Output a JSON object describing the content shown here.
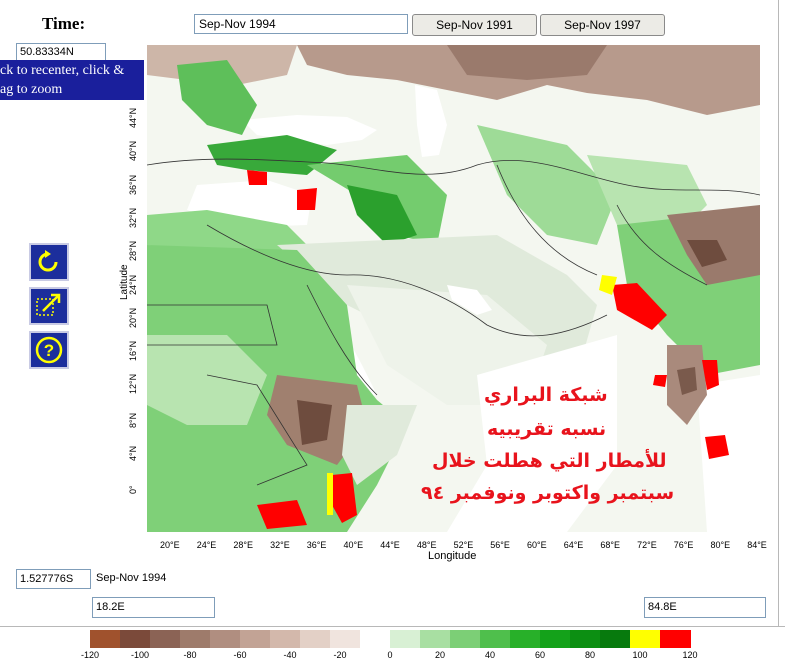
{
  "time": {
    "label": "Time:",
    "value": "Sep-Nov 1994",
    "prev_button": "Sep-Nov 1991",
    "next_button": "Sep-Nov 1997"
  },
  "coords": {
    "top_lat": "50.83334N",
    "bottom_lat": "1.527776S",
    "bottom_time": "Sep-Nov 1994",
    "left_lon": "18.2E",
    "right_lon": "84.8E"
  },
  "tooltip": {
    "line1": "ck to recenter, click &",
    "line2": "ag to zoom"
  },
  "tools": [
    "refresh-icon",
    "zoom-out-icon",
    "help-icon"
  ],
  "map": {
    "ylabel": "Latitude",
    "xlabel": "Longitude",
    "lat_ticks": [
      "44°N",
      "40°N",
      "36°N",
      "32°N",
      "28°N",
      "24°N",
      "20°N",
      "16°N",
      "12°N",
      "8°N",
      "4°N",
      "0°"
    ],
    "lon_ticks": [
      "20°E",
      "24°E",
      "28°E",
      "32°E",
      "36°E",
      "40°E",
      "44°E",
      "48°E",
      "52°E",
      "56°E",
      "60°E",
      "64°E",
      "68°E",
      "72°E",
      "76°E",
      "80°E",
      "84°E"
    ]
  },
  "annotation": {
    "line1": "شبكة البراري",
    "line2": "نسبه تقريبيه",
    "line3": "للأمطار التي هطلت خلال",
    "line4": "سبتمبر واكتوبر ونوفمبر ٩٤"
  },
  "colorbar": {
    "labels": [
      "-120",
      "-100",
      "-80",
      "-60",
      "-40",
      "-20",
      "0",
      "20",
      "40",
      "60",
      "80",
      "100",
      "120"
    ],
    "colors": [
      "#a0522d",
      "#7b4a3a",
      "#8b6355",
      "#9e7b6b",
      "#b08e80",
      "#c2a395",
      "#d3b8ab",
      "#e3d0c6",
      "#f0e4de",
      "#ffffff",
      "#d8f0d4",
      "#a8dfa2",
      "#7ccf76",
      "#4fbf4c",
      "#28b029",
      "#14a21a",
      "#0c8f12",
      "#077a0d",
      "#ffff00",
      "#ff0000"
    ]
  }
}
